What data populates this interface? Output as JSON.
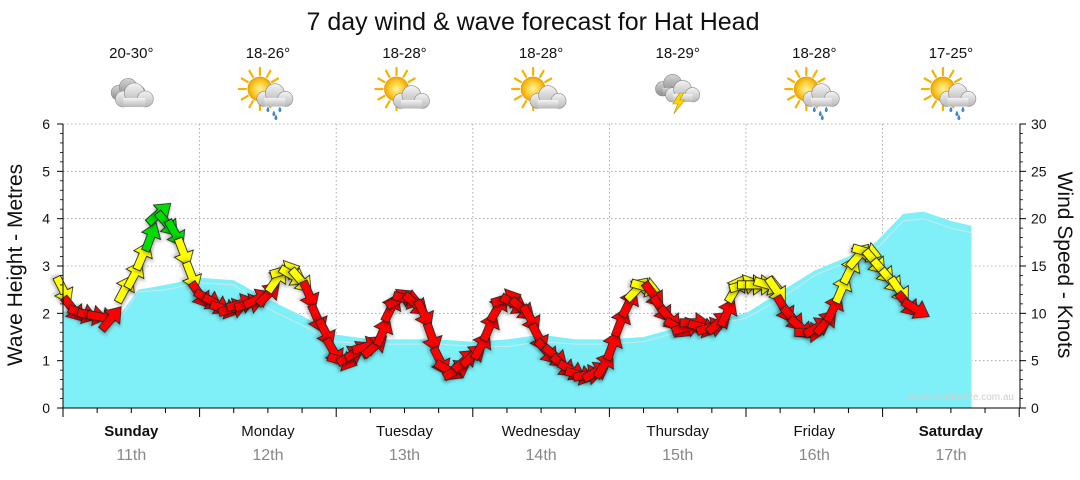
{
  "chart_data": {
    "type": "area",
    "title": "7 day wind & wave forecast for Hat Head",
    "ylabel_left": "Wave Height - Metres",
    "ylabel_right": "Wind Speed - Knots",
    "ylim_left": [
      0,
      6
    ],
    "ylim_right": [
      0,
      30
    ],
    "yticks_left": [
      "0",
      "1",
      "2",
      "3",
      "4",
      "5",
      "6"
    ],
    "yticks_right": [
      "0",
      "5",
      "10",
      "15",
      "20",
      "25",
      "30"
    ],
    "grid": true,
    "watermark": "www.seabreeze.com.au",
    "days": [
      {
        "name": "Sunday",
        "date": "11th",
        "bold": true,
        "temp": "20-30°",
        "icon": "cloudy-icon"
      },
      {
        "name": "Monday",
        "date": "12th",
        "bold": false,
        "temp": "18-26°",
        "icon": "sun-cloud-rain-icon"
      },
      {
        "name": "Tuesday",
        "date": "13th",
        "bold": false,
        "temp": "18-28°",
        "icon": "partly-cloudy-icon"
      },
      {
        "name": "Wednesday",
        "date": "14th",
        "bold": false,
        "temp": "18-28°",
        "icon": "partly-cloudy-icon"
      },
      {
        "name": "Thursday",
        "date": "15th",
        "bold": false,
        "temp": "18-29°",
        "icon": "storm-icon"
      },
      {
        "name": "Friday",
        "date": "16th",
        "bold": false,
        "temp": "18-28°",
        "icon": "sun-cloud-rain-icon"
      },
      {
        "name": "Saturday",
        "date": "17th",
        "bold": true,
        "temp": "17-25°",
        "icon": "sun-cloud-rain-icon"
      }
    ],
    "wave_series": {
      "name": "Wave Height",
      "color": "#7ff0f8",
      "values": [
        [
          0,
          2.05
        ],
        [
          0.25,
          1.85
        ],
        [
          0.4,
          1.9
        ],
        [
          0.55,
          2.5
        ],
        [
          0.75,
          2.6
        ],
        [
          1.0,
          2.75
        ],
        [
          1.25,
          2.7
        ],
        [
          1.5,
          2.3
        ],
        [
          1.75,
          1.95
        ],
        [
          2.0,
          1.55
        ],
        [
          2.25,
          1.45
        ],
        [
          2.5,
          1.45
        ],
        [
          2.75,
          1.45
        ],
        [
          3.0,
          1.4
        ],
        [
          3.25,
          1.45
        ],
        [
          3.5,
          1.55
        ],
        [
          3.75,
          1.45
        ],
        [
          4.0,
          1.45
        ],
        [
          4.25,
          1.5
        ],
        [
          4.5,
          1.7
        ],
        [
          4.75,
          1.85
        ],
        [
          5.0,
          2.0
        ],
        [
          5.25,
          2.45
        ],
        [
          5.5,
          2.9
        ],
        [
          5.75,
          3.2
        ],
        [
          5.95,
          3.5
        ],
        [
          6.15,
          4.1
        ],
        [
          6.3,
          4.15
        ],
        [
          6.5,
          3.95
        ],
        [
          6.65,
          3.85
        ]
      ]
    },
    "swell_series": {
      "name": "Swell",
      "color": "#d9d9d9",
      "values": [
        [
          0,
          2.0
        ],
        [
          0.25,
          1.75
        ],
        [
          0.4,
          1.8
        ],
        [
          0.55,
          2.45
        ],
        [
          0.75,
          2.5
        ],
        [
          1.0,
          2.65
        ],
        [
          1.25,
          2.6
        ],
        [
          1.5,
          2.1
        ],
        [
          1.75,
          1.75
        ],
        [
          2.0,
          1.4
        ],
        [
          2.25,
          1.35
        ],
        [
          2.5,
          1.35
        ],
        [
          2.75,
          1.35
        ],
        [
          3.0,
          1.3
        ],
        [
          3.25,
          1.3
        ],
        [
          3.5,
          1.4
        ],
        [
          3.75,
          1.35
        ],
        [
          4.0,
          1.35
        ],
        [
          4.25,
          1.4
        ],
        [
          4.5,
          1.6
        ],
        [
          4.75,
          1.75
        ],
        [
          5.0,
          1.9
        ],
        [
          5.25,
          2.3
        ],
        [
          5.5,
          2.8
        ],
        [
          5.75,
          3.1
        ],
        [
          5.95,
          3.35
        ],
        [
          6.15,
          3.95
        ],
        [
          6.3,
          4.0
        ],
        [
          6.5,
          3.8
        ],
        [
          6.65,
          3.7
        ]
      ]
    },
    "wind_series": {
      "name": "Wind Speed",
      "unit": "Knots",
      "colors": {
        "low": "#ff0000",
        "mid": "#ffff00",
        "high": "#00dd00"
      },
      "values": [
        [
          0.0,
          12.5
        ],
        [
          0.07,
          10.5
        ],
        [
          0.14,
          10.0
        ],
        [
          0.21,
          9.8
        ],
        [
          0.28,
          9.6
        ],
        [
          0.35,
          9.4
        ],
        [
          0.45,
          12.5
        ],
        [
          0.52,
          14.0
        ],
        [
          0.58,
          16.0
        ],
        [
          0.64,
          18.0
        ],
        [
          0.7,
          20.5
        ],
        [
          0.76,
          19.5
        ],
        [
          0.82,
          18.5
        ],
        [
          0.88,
          16.5
        ],
        [
          0.94,
          14.0
        ],
        [
          1.0,
          12.0
        ],
        [
          1.06,
          11.5
        ],
        [
          1.12,
          11.0
        ],
        [
          1.18,
          10.5
        ],
        [
          1.24,
          10.5
        ],
        [
          1.3,
          11.0
        ],
        [
          1.36,
          11.0
        ],
        [
          1.42,
          11.5
        ],
        [
          1.5,
          12.0
        ],
        [
          1.56,
          13.5
        ],
        [
          1.62,
          14.5
        ],
        [
          1.68,
          14.0
        ],
        [
          1.74,
          13.5
        ],
        [
          1.8,
          12.0
        ],
        [
          1.86,
          9.5
        ],
        [
          1.92,
          8.0
        ],
        [
          1.98,
          6.0
        ],
        [
          2.04,
          5.0
        ],
        [
          2.1,
          5.5
        ],
        [
          2.16,
          6.0
        ],
        [
          2.22,
          6.5
        ],
        [
          2.28,
          6.5
        ],
        [
          2.34,
          8.0
        ],
        [
          2.4,
          10.5
        ],
        [
          2.46,
          11.5
        ],
        [
          2.52,
          11.5
        ],
        [
          2.58,
          11.0
        ],
        [
          2.64,
          10.0
        ],
        [
          2.7,
          7.5
        ],
        [
          2.76,
          5.0
        ],
        [
          2.82,
          4.0
        ],
        [
          2.88,
          4.0
        ],
        [
          2.94,
          5.0
        ],
        [
          3.0,
          5.5
        ],
        [
          3.06,
          6.5
        ],
        [
          3.12,
          8.5
        ],
        [
          3.18,
          10.5
        ],
        [
          3.24,
          11.5
        ],
        [
          3.3,
          11.0
        ],
        [
          3.36,
          10.5
        ],
        [
          3.42,
          9.5
        ],
        [
          3.48,
          7.5
        ],
        [
          3.54,
          6.0
        ],
        [
          3.6,
          5.5
        ],
        [
          3.66,
          4.5
        ],
        [
          3.72,
          4.0
        ],
        [
          3.78,
          3.5
        ],
        [
          3.84,
          3.5
        ],
        [
          3.9,
          3.8
        ],
        [
          3.96,
          4.5
        ],
        [
          4.02,
          6.5
        ],
        [
          4.08,
          9.0
        ],
        [
          4.14,
          11.0
        ],
        [
          4.2,
          12.5
        ],
        [
          4.26,
          12.8
        ],
        [
          4.32,
          12.0
        ],
        [
          4.38,
          10.5
        ],
        [
          4.44,
          9.5
        ],
        [
          4.5,
          8.5
        ],
        [
          4.56,
          8.5
        ],
        [
          4.62,
          9.0
        ],
        [
          4.68,
          8.5
        ],
        [
          4.74,
          8.5
        ],
        [
          4.8,
          9.0
        ],
        [
          4.86,
          10.0
        ],
        [
          4.92,
          12.5
        ],
        [
          4.98,
          13.0
        ],
        [
          5.04,
          13.0
        ],
        [
          5.1,
          13.0
        ],
        [
          5.16,
          13.0
        ],
        [
          5.22,
          12.5
        ],
        [
          5.28,
          10.5
        ],
        [
          5.34,
          9.5
        ],
        [
          5.4,
          8.5
        ],
        [
          5.46,
          8.0
        ],
        [
          5.52,
          8.5
        ],
        [
          5.58,
          9.0
        ],
        [
          5.64,
          10.5
        ],
        [
          5.7,
          12.5
        ],
        [
          5.76,
          14.5
        ],
        [
          5.82,
          16.0
        ],
        [
          5.88,
          16.5
        ],
        [
          5.94,
          15.5
        ],
        [
          6.0,
          14.5
        ],
        [
          6.06,
          13.5
        ],
        [
          6.12,
          12.5
        ],
        [
          6.18,
          11.0
        ],
        [
          6.24,
          10.5
        ]
      ]
    }
  }
}
